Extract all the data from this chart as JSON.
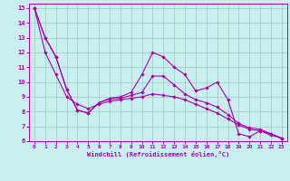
{
  "xlabel": "Windchill (Refroidissement éolien,°C)",
  "background_color": "#c8eef0",
  "line_color": "#aa00aa",
  "grid_color": "#99ccbb",
  "xlim": [
    -0.5,
    23.5
  ],
  "ylim": [
    6,
    15.3
  ],
  "xticks": [
    0,
    1,
    2,
    3,
    4,
    5,
    6,
    7,
    8,
    9,
    10,
    11,
    12,
    13,
    14,
    15,
    16,
    17,
    18,
    19,
    20,
    21,
    22,
    23
  ],
  "yticks": [
    6,
    7,
    8,
    9,
    10,
    11,
    12,
    13,
    14,
    15
  ],
  "series": [
    [
      15.0,
      13.0,
      11.7,
      9.5,
      8.1,
      7.9,
      8.6,
      8.9,
      9.0,
      9.3,
      10.5,
      12.0,
      11.7,
      11.0,
      10.5,
      9.4,
      9.6,
      10.0,
      8.8,
      6.5,
      6.3,
      6.7,
      6.4,
      6.2
    ],
    [
      15.0,
      13.0,
      11.7,
      9.5,
      8.1,
      7.9,
      8.6,
      8.85,
      8.9,
      9.1,
      9.3,
      10.4,
      10.4,
      9.8,
      9.2,
      8.8,
      8.6,
      8.3,
      7.8,
      7.2,
      6.9,
      6.8,
      6.5,
      6.2
    ],
    [
      15.0,
      12.0,
      10.5,
      9.0,
      8.5,
      8.2,
      8.5,
      8.7,
      8.8,
      8.9,
      9.0,
      9.2,
      9.1,
      9.0,
      8.8,
      8.5,
      8.2,
      7.9,
      7.5,
      7.1,
      6.8,
      6.7,
      6.5,
      6.2
    ]
  ]
}
